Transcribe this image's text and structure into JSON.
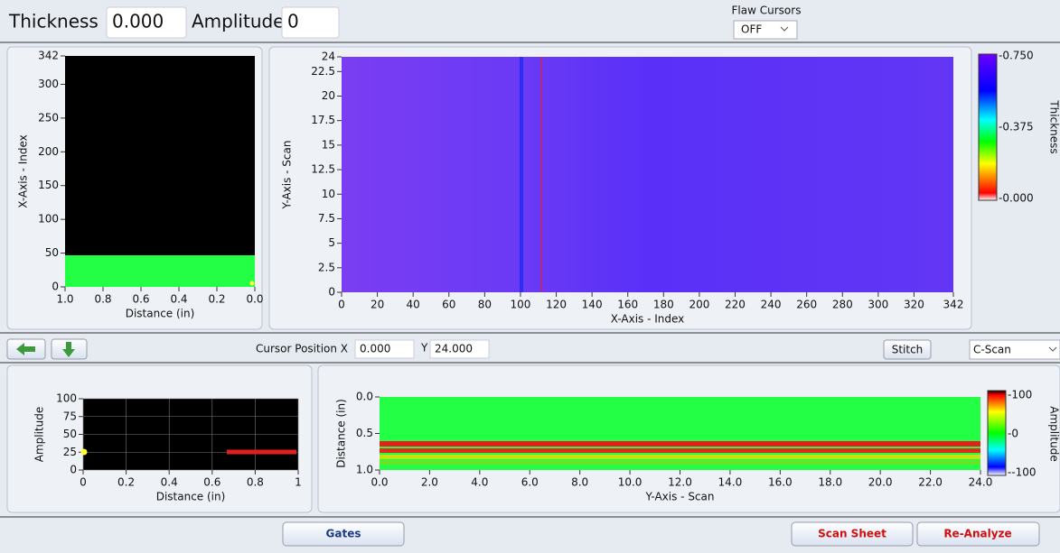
{
  "header": {
    "thickness_label": "Thickness",
    "thickness_value": "0.000",
    "amplitude_label": "Amplitude",
    "amplitude_value": "0",
    "flaw_cursors_label": "Flaw Cursors",
    "flaw_cursors_value": "OFF"
  },
  "top_left_plot": {
    "y_label": "X-Axis - Index",
    "x_label": "Distance (in)",
    "yticks": [
      "342",
      "300",
      "250",
      "200",
      "150",
      "100",
      "50",
      "0"
    ],
    "xticks": [
      "1.0",
      "0.8",
      "0.6",
      "0.4",
      "0.2",
      "0.0"
    ]
  },
  "heatmap": {
    "y_label": "Y-Axis - Scan",
    "x_label": "X-Axis - Index",
    "yticks": [
      "24",
      "22.5",
      "20",
      "17.5",
      "15",
      "12.5",
      "10",
      "7.5",
      "5",
      "2.5",
      "0"
    ],
    "xticks": [
      "0",
      "20",
      "40",
      "60",
      "80",
      "100",
      "120",
      "140",
      "160",
      "180",
      "200",
      "220",
      "240",
      "260",
      "280",
      "300",
      "320",
      "342"
    ]
  },
  "thickness_colorbar": {
    "title": "Thickness",
    "labels": [
      "-0.750",
      "-0.375",
      "-0.000"
    ]
  },
  "toolbar": {
    "cursor_x_label": "Cursor Position X",
    "cursor_x_value": "0.000",
    "cursor_y_label": "Y",
    "cursor_y_value": "24.000",
    "stitch": "Stitch",
    "view_mode": "C-Scan"
  },
  "ascan_plot": {
    "y_label": "Amplitude",
    "x_label": "Distance (in)",
    "yticks": [
      "100",
      "75",
      "50",
      "25",
      "0"
    ],
    "xticks": [
      "0",
      "0.2",
      "0.4",
      "0.6",
      "0.8",
      "1"
    ]
  },
  "bscan_plot": {
    "y_label": "Distance (in)",
    "x_label": "Y-Axis - Scan",
    "yticks": [
      "0.0",
      "0.5",
      "1.0"
    ],
    "xticks": [
      "0.0",
      "2.0",
      "4.0",
      "6.0",
      "8.0",
      "10.0",
      "12.0",
      "14.0",
      "16.0",
      "18.0",
      "20.0",
      "22.0",
      "24.0"
    ]
  },
  "amplitude_colorbar": {
    "title": "Amplitude",
    "labels": [
      "-100",
      "-0",
      "--100"
    ]
  },
  "buttons": {
    "gates": "Gates",
    "scan_sheet": "Scan Sheet",
    "re_analyze": "Re-Analyze"
  }
}
